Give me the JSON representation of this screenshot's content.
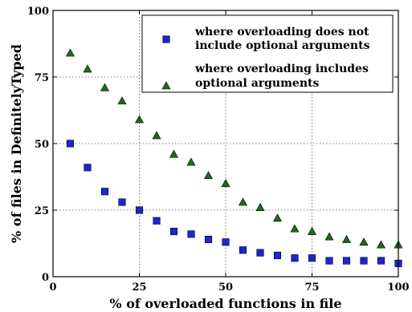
{
  "chart_data": {
    "type": "scatter",
    "xlabel": "% of overloaded functions in file",
    "ylabel": "% of files in DefinitelyTyped",
    "xlim": [
      0,
      100
    ],
    "ylim": [
      0,
      100
    ],
    "xticks": [
      0,
      25,
      50,
      75,
      100
    ],
    "yticks": [
      0,
      25,
      50,
      75,
      100
    ],
    "grid": true,
    "legend": "top-right",
    "series": [
      {
        "name": "where overloading does not include optional arguments",
        "legend_lines": [
          "where overloading does not",
          "include optional arguments"
        ],
        "marker": "square",
        "color": "#1f24d4",
        "x": [
          5,
          10,
          15,
          20,
          25,
          30,
          35,
          40,
          45,
          50,
          55,
          60,
          65,
          70,
          75,
          80,
          85,
          90,
          95,
          100
        ],
        "y": [
          50,
          41,
          32,
          28,
          25,
          21,
          17,
          16,
          14,
          13,
          10,
          9,
          8,
          7,
          7,
          6,
          6,
          6,
          6,
          5
        ]
      },
      {
        "name": "where overloading includes optional arguments",
        "legend_lines": [
          "where overloading includes",
          "optional arguments"
        ],
        "marker": "triangle",
        "color": "#1e6a1e",
        "x": [
          5,
          10,
          15,
          20,
          25,
          30,
          35,
          40,
          45,
          50,
          55,
          60,
          65,
          70,
          75,
          80,
          85,
          90,
          95,
          100
        ],
        "y": [
          84,
          78,
          71,
          66,
          59,
          53,
          46,
          43,
          38,
          35,
          28,
          26,
          22,
          18,
          17,
          15,
          14,
          13,
          12,
          12
        ]
      }
    ]
  }
}
